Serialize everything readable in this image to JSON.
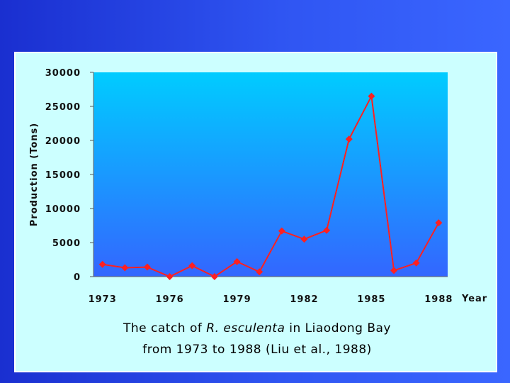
{
  "chart_data": {
    "type": "line",
    "title": "",
    "ylabel": "Production (Tons)",
    "xlabel": "Year",
    "x": [
      1973,
      1974,
      1975,
      1976,
      1977,
      1978,
      1979,
      1980,
      1981,
      1982,
      1983,
      1984,
      1985,
      1986,
      1987,
      1988
    ],
    "x_tick_labels": [
      "1973",
      "1976",
      "1979",
      "1982",
      "1985",
      "1988"
    ],
    "x_tick_values": [
      1973,
      1976,
      1979,
      1982,
      1985,
      1988
    ],
    "y_tick_labels": [
      "0",
      "5000",
      "10000",
      "15000",
      "20000",
      "25000",
      "30000"
    ],
    "y_tick_values": [
      0,
      5000,
      10000,
      15000,
      20000,
      25000,
      30000
    ],
    "ylim": [
      0,
      30000
    ],
    "series": [
      {
        "values": [
          1800,
          1300,
          1400,
          0,
          1600,
          0,
          2200,
          700,
          6700,
          5500,
          6800,
          20200,
          26500,
          900,
          2000,
          7900
        ],
        "color": "#ff2020"
      }
    ],
    "grid": false,
    "plot_background": "gradient #00ccff to #3366ff"
  },
  "caption": {
    "line1_prefix": "The catch of ",
    "line1_species": "R. esculenta",
    "line1_suffix": " in Liaodong Bay",
    "line2": "from 1973 to 1988 (Liu et al., 1988)"
  }
}
